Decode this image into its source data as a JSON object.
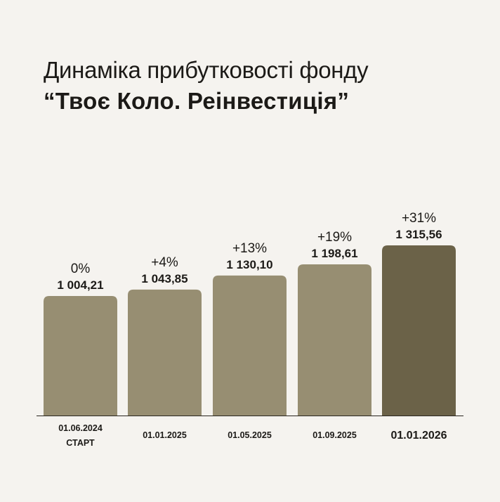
{
  "title": {
    "line1": "Динаміка прибутковості фонду",
    "line2": "“Твоє Коло. Реінвестиція”"
  },
  "colors": {
    "background": "#f5f3ef",
    "bar": "#978e72",
    "bar_highlight": "#6b6248",
    "axis": "#2a2620",
    "text": "#1c1a17"
  },
  "chart_data": {
    "type": "bar",
    "title": "Динаміка прибутковості фонду “Твоє Коло. Реінвестиція”",
    "categories": [
      "01.06.2024",
      "01.01.2025",
      "01.05.2025",
      "01.09.2025",
      "01.01.2026"
    ],
    "sublabels": [
      "СТАРТ",
      "",
      "",
      "",
      ""
    ],
    "values": [
      1004.21,
      1043.85,
      1130.1,
      1198.61,
      1315.56
    ],
    "value_labels": [
      "1 004,21",
      "1 043,85",
      "1 130,10",
      "1 198,61",
      "1 315,56"
    ],
    "percent_labels": [
      "0%",
      "+4%",
      "+13%",
      "+19%",
      "+31%"
    ],
    "highlight_index": 4,
    "xlabel": "",
    "ylabel": ""
  }
}
